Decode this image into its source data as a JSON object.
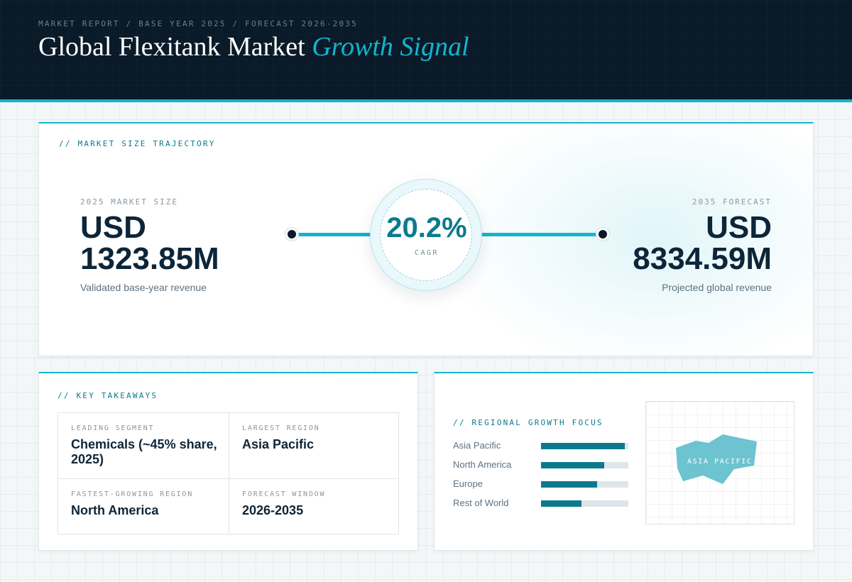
{
  "header": {
    "eyebrow": "MARKET REPORT / BASE YEAR 2025 / FORECAST 2026-2035",
    "title_main": "Global Flexitank Market",
    "title_accent": "Growth Signal"
  },
  "trajectory": {
    "section_label": "// MARKET SIZE TRAJECTORY",
    "start": {
      "label": "2025 MARKET SIZE",
      "currency": "USD",
      "value": "1323.85M",
      "description": "Validated base-year revenue"
    },
    "end": {
      "label": "2035 FORECAST",
      "currency": "USD",
      "value": "8334.59M",
      "description": "Projected global revenue"
    },
    "cagr": {
      "value": "20.2%",
      "label": "CAGR"
    }
  },
  "takeaways": {
    "section_label": "// KEY TAKEAWAYS",
    "items": [
      {
        "label": "LEADING SEGMENT",
        "value": "Chemicals (~45% share, 2025)"
      },
      {
        "label": "LARGEST REGION",
        "value": "Asia Pacific"
      },
      {
        "label": "FASTEST-GROWING REGION",
        "value": "North America"
      },
      {
        "label": "FORECAST WINDOW",
        "value": "2026-2035"
      }
    ]
  },
  "regional": {
    "section_label": "// REGIONAL GROWTH FOCUS",
    "map_label": "ASIA PACIFIC"
  },
  "colors": {
    "accent": "#12b5cf",
    "bar_fill": "#0c7a8c",
    "bar_track": "#dfe6ea",
    "map_shape": "#6dc3cf"
  },
  "chart_data": {
    "type": "bar",
    "orientation": "horizontal",
    "categories": [
      "Asia Pacific",
      "North America",
      "Europe",
      "Rest of World"
    ],
    "values": [
      0.96,
      0.72,
      0.64,
      0.46
    ],
    "xlim": [
      0,
      1
    ]
  }
}
